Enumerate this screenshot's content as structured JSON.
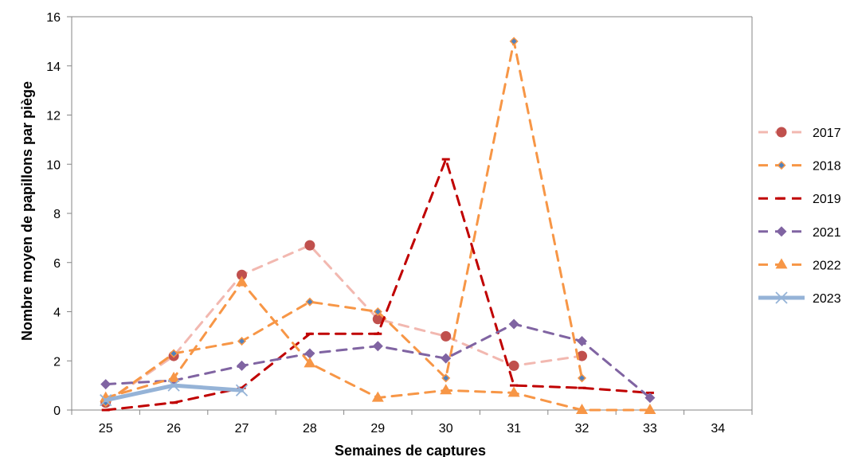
{
  "chart_data": {
    "type": "line",
    "xlabel": "Semaines de captures",
    "ylabel": "Nombre moyen de papillons par piège",
    "x_categories": [
      25,
      26,
      27,
      28,
      29,
      30,
      31,
      32,
      33,
      34
    ],
    "ylim": [
      0,
      16
    ],
    "yticks": [
      0,
      2,
      4,
      6,
      8,
      10,
      12,
      14,
      16
    ],
    "grid": "none",
    "legend_position": "right",
    "series": [
      {
        "name": "2017",
        "color": "#f2b8b0",
        "marker_color": "#c0504d",
        "marker": "circle",
        "dash": "dashed",
        "points": [
          [
            25,
            0.3
          ],
          [
            26,
            2.2
          ],
          [
            27,
            5.5
          ],
          [
            28,
            6.7
          ],
          [
            29,
            3.7
          ],
          [
            30,
            3.0
          ],
          [
            31,
            1.8
          ],
          [
            32,
            2.2
          ]
        ]
      },
      {
        "name": "2018",
        "color": "#f79646",
        "marker_color": "#4f81bd",
        "marker": "diamond",
        "dash": "dashed",
        "points": [
          [
            25,
            0.3
          ],
          [
            26,
            2.3
          ],
          [
            27,
            2.8
          ],
          [
            28,
            4.4
          ],
          [
            29,
            4.0
          ],
          [
            30,
            1.3
          ],
          [
            31,
            15.0
          ],
          [
            32,
            1.3
          ]
        ]
      },
      {
        "name": "2019",
        "color": "#c00000",
        "marker_color": "#c00000",
        "marker": "dash",
        "dash": "dashed",
        "points": [
          [
            25,
            0.0
          ],
          [
            26,
            0.3
          ],
          [
            27,
            0.9
          ],
          [
            28,
            3.1
          ],
          [
            29,
            3.1
          ],
          [
            30,
            10.2
          ],
          [
            31,
            1.0
          ],
          [
            32,
            0.9
          ],
          [
            33,
            0.7
          ]
        ]
      },
      {
        "name": "2021",
        "color": "#8064a2",
        "marker_color": "#8064a2",
        "marker": "diamond",
        "dash": "dashed",
        "points": [
          [
            25,
            1.05
          ],
          [
            26,
            1.2
          ],
          [
            27,
            1.8
          ],
          [
            28,
            2.3
          ],
          [
            29,
            2.6
          ],
          [
            30,
            2.1
          ],
          [
            31,
            3.5
          ],
          [
            32,
            2.8
          ],
          [
            33,
            0.5
          ]
        ]
      },
      {
        "name": "2022",
        "color": "#f79646",
        "marker_color": "#f79646",
        "marker": "triangle",
        "dash": "dashed",
        "points": [
          [
            25,
            0.5
          ],
          [
            26,
            1.3
          ],
          [
            27,
            5.2
          ],
          [
            28,
            1.9
          ],
          [
            29,
            0.5
          ],
          [
            30,
            0.8
          ],
          [
            31,
            0.7
          ],
          [
            32,
            0.0
          ],
          [
            33,
            0.0
          ]
        ]
      },
      {
        "name": "2023",
        "color": "#95b3d7",
        "marker_color": "#95b3d7",
        "marker": "x",
        "dash": "solid",
        "points": [
          [
            25,
            0.4
          ],
          [
            26,
            1.0
          ],
          [
            27,
            0.8
          ]
        ]
      }
    ]
  }
}
